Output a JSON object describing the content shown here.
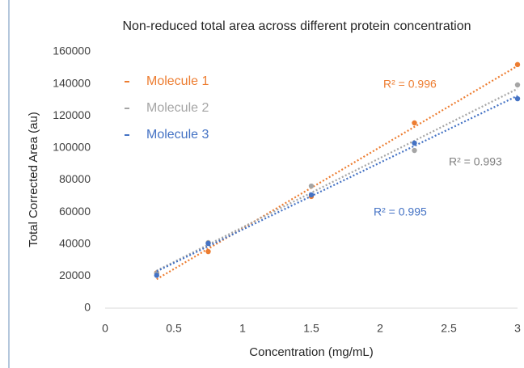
{
  "chart_data": {
    "type": "scatter",
    "title": "Non-reduced total area across different protein concentration",
    "x_label": "Concentration (mg/mL)",
    "y_label": "Total Corrected Area (au)",
    "x": [
      0.375,
      0.75,
      1.5,
      2.25,
      3
    ],
    "series": [
      {
        "name": "Molecule 1",
        "color": "#ed7d31",
        "values": [
          22000,
          35300,
          69700,
          115600,
          152000
        ]
      },
      {
        "name": "Molecule 2",
        "color": "#a5a5a5",
        "values": [
          21700,
          40900,
          76200,
          98400,
          139300
        ]
      },
      {
        "name": "Molecule 3",
        "color": "#4472c4",
        "values": [
          20500,
          40400,
          70700,
          103000,
          130700
        ]
      }
    ],
    "annotations": [
      {
        "text": "R² = 0.996",
        "color": "#ed7d31"
      },
      {
        "text": "R² = 0.993",
        "color": "#7f7f7f"
      },
      {
        "text": "R² = 0.995",
        "color": "#4472c4"
      }
    ],
    "trendline": "linear",
    "legend": "upper left",
    "xlim": [
      0,
      3
    ],
    "xticks": [
      0,
      0.5,
      1,
      1.5,
      2,
      2.5,
      3
    ],
    "ylim": [
      0,
      160000
    ],
    "yticks": [
      0,
      20000,
      40000,
      60000,
      80000,
      100000,
      120000,
      140000,
      160000
    ],
    "grid": false
  }
}
